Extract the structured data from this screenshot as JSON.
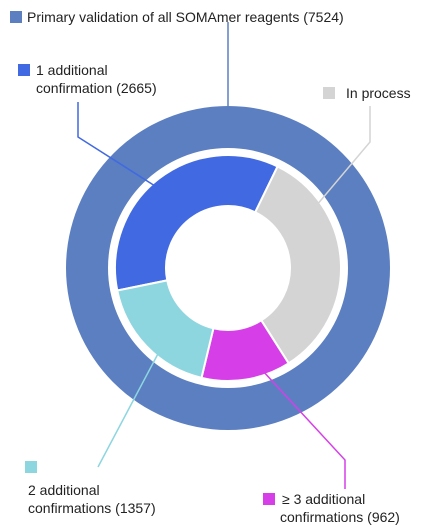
{
  "chart_data": {
    "type": "nested-donut",
    "outer": {
      "name": "Primary validation of all SOMAmer reagents",
      "values": [
        7524
      ],
      "value_labels": [
        "(7524)"
      ],
      "color": "#5b7fc0"
    },
    "inner": {
      "categories": [
        "1 additional confirmation",
        "In process",
        "≥ 3 additional confirmations",
        "2 additional confirmations"
      ],
      "values": [
        2665,
        2540,
        962,
        1357
      ],
      "value_labels": [
        "(2665)",
        null,
        "(962)",
        "(1357)"
      ],
      "colors": [
        "#4169e1",
        "#d4d4d4",
        "#d63fe8",
        "#8dd6e0"
      ]
    }
  }
}
